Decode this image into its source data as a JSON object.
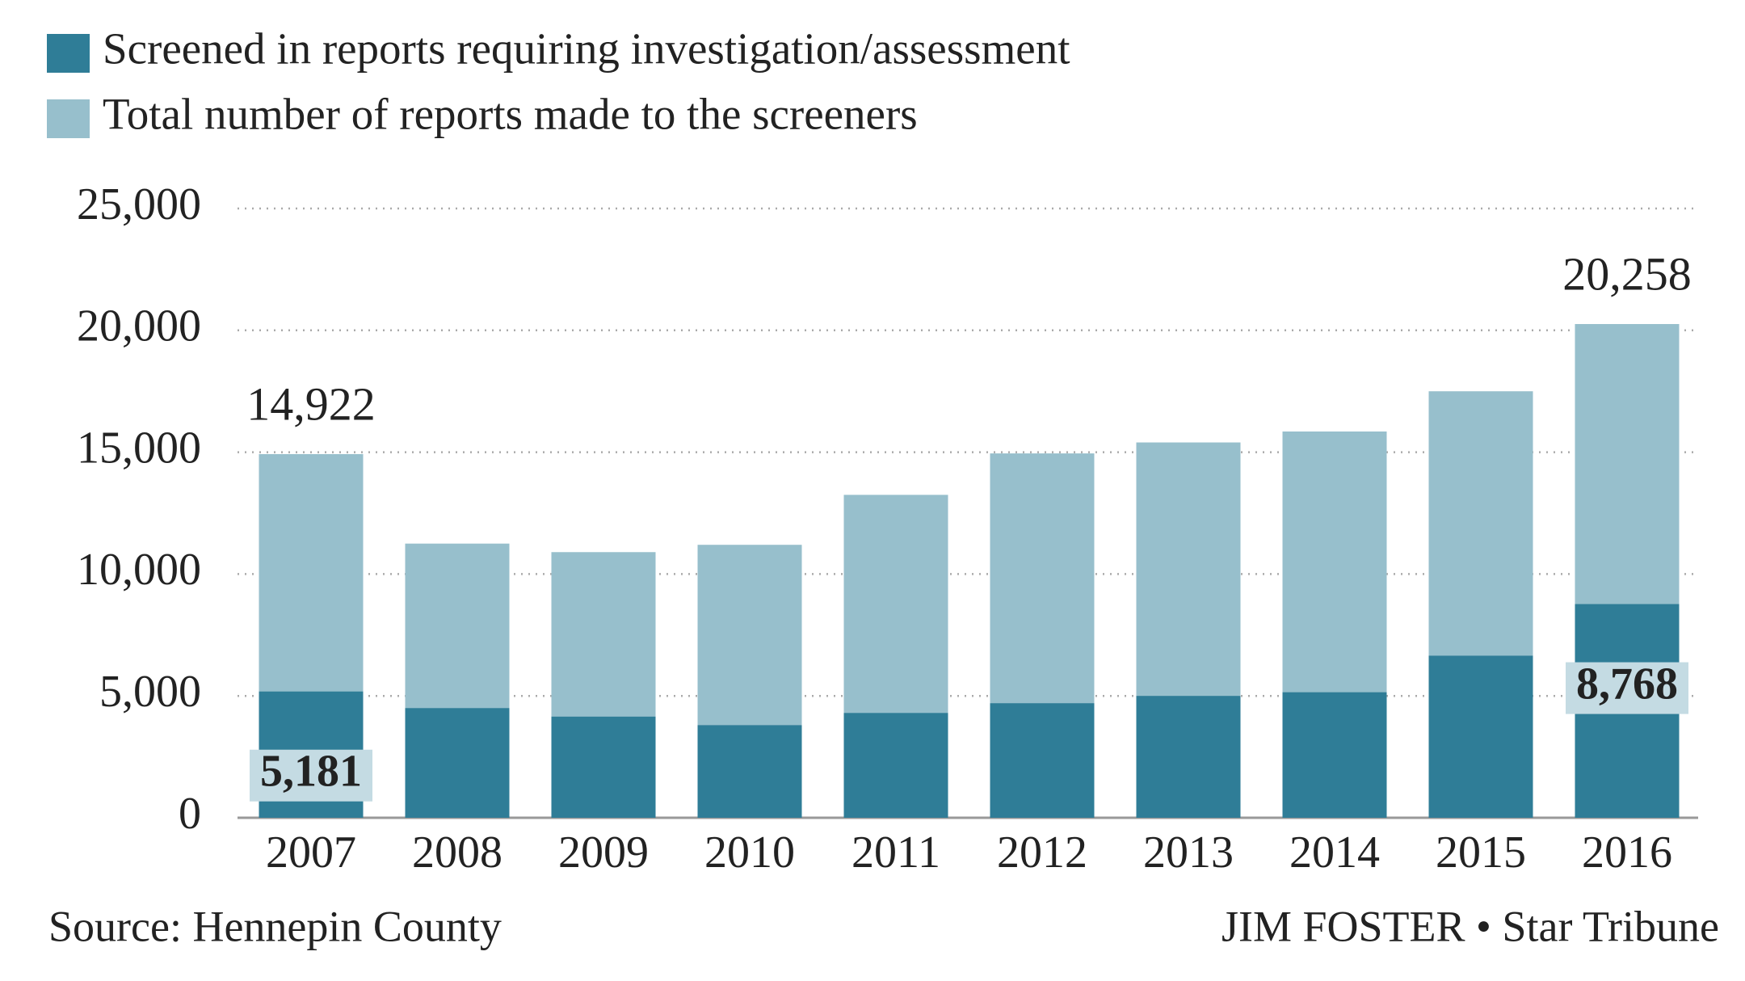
{
  "chart_data": {
    "type": "bar",
    "categories": [
      "2007",
      "2008",
      "2009",
      "2010",
      "2011",
      "2012",
      "2013",
      "2014",
      "2015",
      "2016"
    ],
    "series": [
      {
        "name": "Screened in reports requiring investigation/assessment",
        "color": "#2f7d97",
        "values": [
          5181,
          4500,
          4150,
          3800,
          4300,
          4700,
          5000,
          5150,
          6650,
          8768
        ],
        "value_labels": [
          "5,181",
          null,
          null,
          null,
          null,
          null,
          null,
          null,
          null,
          "8,768"
        ]
      },
      {
        "name": "Total number of reports made to the screeners",
        "color": "#97bfcc",
        "values": [
          14922,
          11250,
          10900,
          11200,
          13250,
          14950,
          15400,
          15850,
          17500,
          20258
        ],
        "value_labels": [
          "14,922",
          null,
          null,
          null,
          null,
          null,
          null,
          null,
          null,
          "20,258"
        ]
      }
    ],
    "ylim": [
      0,
      25000
    ],
    "yticks": [
      0,
      {
        "value": 5000,
        "label": "5,000"
      },
      {
        "value": 10000,
        "label": "10,000"
      },
      {
        "value": 15000,
        "label": "15,000"
      },
      {
        "value": 20000,
        "label": "20,000"
      },
      {
        "value": 25000,
        "label": "25,000"
      }
    ],
    "grid": true,
    "source": "Source: Hennepin County",
    "credit": "JIM FOSTER • Star Tribune"
  }
}
